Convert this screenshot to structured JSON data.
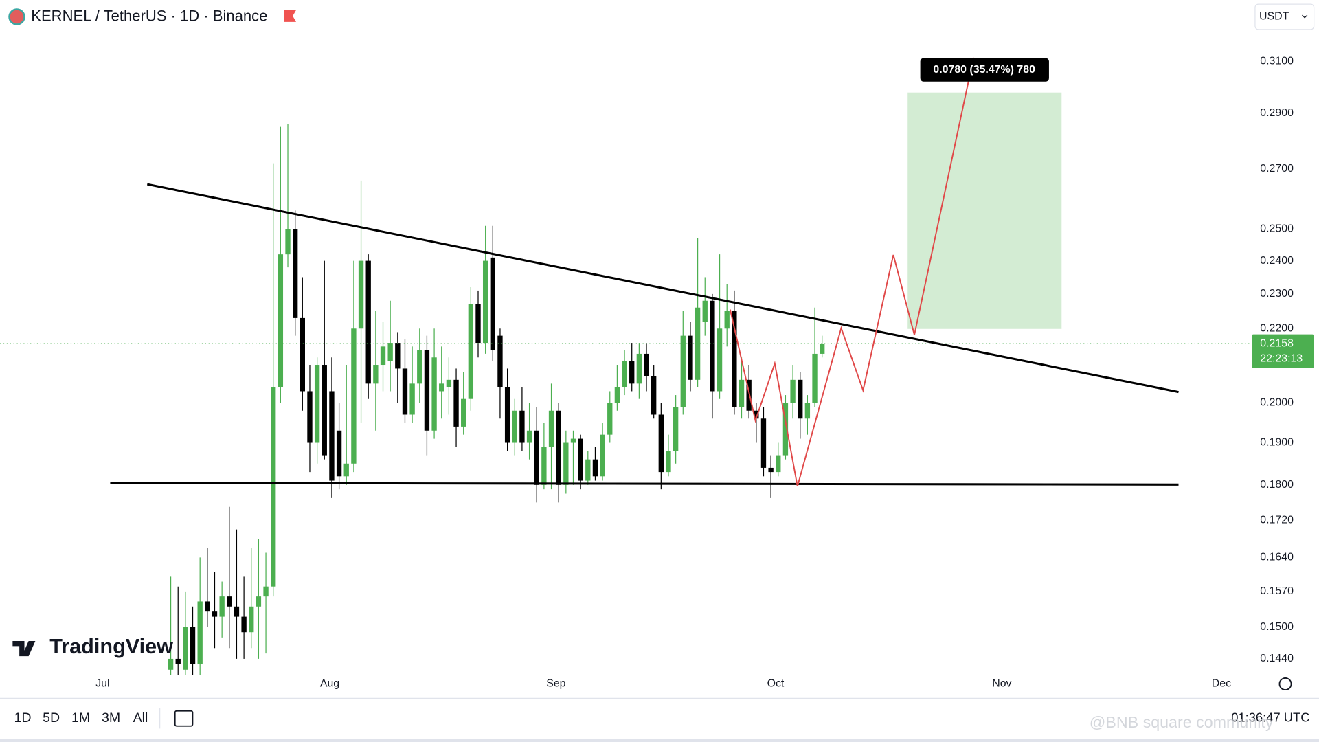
{
  "chart_data": {
    "type": "candlestick",
    "title": "KERNEL / TetherUS · 1D · Binance",
    "currency": "USDT",
    "log_scale": true,
    "grid": false,
    "up_color": "#4caf50",
    "down_color": "#000000",
    "ylim": [
      0.1414,
      0.3354
    ],
    "yticks": [
      {
        "value": 0.31,
        "label": "0.3100"
      },
      {
        "value": 0.29,
        "label": "0.2900"
      },
      {
        "value": 0.27,
        "label": "0.2700"
      },
      {
        "value": 0.25,
        "label": "0.2500"
      },
      {
        "value": 0.24,
        "label": "0.2400"
      },
      {
        "value": 0.23,
        "label": "0.2300"
      },
      {
        "value": 0.22,
        "label": "0.2200"
      },
      {
        "value": 0.2,
        "label": "0.2000"
      },
      {
        "value": 0.19,
        "label": "0.1900"
      },
      {
        "value": 0.18,
        "label": "0.1800"
      },
      {
        "value": 0.172,
        "label": "0.1720"
      },
      {
        "value": 0.164,
        "label": "0.1640"
      },
      {
        "value": 0.157,
        "label": "0.1570"
      },
      {
        "value": 0.15,
        "label": "0.1500"
      },
      {
        "value": 0.144,
        "label": "0.1440"
      }
    ],
    "x_labels": [
      "Jul",
      "Aug",
      "Sep",
      "Oct",
      "Nov",
      "Dec"
    ],
    "ohlc": [
      [
        0.142,
        0.16,
        0.141,
        0.144
      ],
      [
        0.144,
        0.158,
        0.141,
        0.143
      ],
      [
        0.142,
        0.157,
        0.141,
        0.15
      ],
      [
        0.15,
        0.154,
        0.141,
        0.143
      ],
      [
        0.143,
        0.164,
        0.141,
        0.155
      ],
      [
        0.155,
        0.166,
        0.15,
        0.153
      ],
      [
        0.153,
        0.161,
        0.146,
        0.152
      ],
      [
        0.152,
        0.159,
        0.148,
        0.156
      ],
      [
        0.156,
        0.175,
        0.146,
        0.154
      ],
      [
        0.154,
        0.17,
        0.144,
        0.152
      ],
      [
        0.152,
        0.16,
        0.144,
        0.149
      ],
      [
        0.149,
        0.166,
        0.146,
        0.154
      ],
      [
        0.154,
        0.168,
        0.144,
        0.156
      ],
      [
        0.156,
        0.165,
        0.145,
        0.158
      ],
      [
        0.158,
        0.272,
        0.156,
        0.204
      ],
      [
        0.204,
        0.285,
        0.2,
        0.242
      ],
      [
        0.242,
        0.286,
        0.238,
        0.25
      ],
      [
        0.25,
        0.256,
        0.218,
        0.223
      ],
      [
        0.223,
        0.235,
        0.198,
        0.203
      ],
      [
        0.203,
        0.21,
        0.183,
        0.19
      ],
      [
        0.19,
        0.212,
        0.185,
        0.21
      ],
      [
        0.21,
        0.24,
        0.186,
        0.187
      ],
      [
        0.203,
        0.212,
        0.177,
        0.181
      ],
      [
        0.193,
        0.2,
        0.179,
        0.182
      ],
      [
        0.182,
        0.21,
        0.18,
        0.185
      ],
      [
        0.185,
        0.24,
        0.183,
        0.22
      ],
      [
        0.22,
        0.266,
        0.195,
        0.24
      ],
      [
        0.24,
        0.242,
        0.201,
        0.205
      ],
      [
        0.205,
        0.225,
        0.193,
        0.21
      ],
      [
        0.21,
        0.222,
        0.203,
        0.215
      ],
      [
        0.211,
        0.228,
        0.203,
        0.216
      ],
      [
        0.216,
        0.219,
        0.2,
        0.209
      ],
      [
        0.209,
        0.217,
        0.195,
        0.197
      ],
      [
        0.197,
        0.215,
        0.195,
        0.205
      ],
      [
        0.205,
        0.22,
        0.2,
        0.214
      ],
      [
        0.214,
        0.218,
        0.187,
        0.193
      ],
      [
        0.193,
        0.22,
        0.191,
        0.212
      ],
      [
        0.203,
        0.215,
        0.196,
        0.205
      ],
      [
        0.204,
        0.212,
        0.197,
        0.206
      ],
      [
        0.206,
        0.209,
        0.189,
        0.194
      ],
      [
        0.194,
        0.208,
        0.192,
        0.201
      ],
      [
        0.201,
        0.232,
        0.198,
        0.227
      ],
      [
        0.227,
        0.231,
        0.212,
        0.216
      ],
      [
        0.216,
        0.251,
        0.213,
        0.24
      ],
      [
        0.241,
        0.251,
        0.211,
        0.214
      ],
      [
        0.218,
        0.22,
        0.196,
        0.204
      ],
      [
        0.204,
        0.209,
        0.188,
        0.19
      ],
      [
        0.19,
        0.201,
        0.187,
        0.198
      ],
      [
        0.198,
        0.204,
        0.188,
        0.19
      ],
      [
        0.19,
        0.2,
        0.186,
        0.193
      ],
      [
        0.193,
        0.199,
        0.176,
        0.18
      ],
      [
        0.18,
        0.195,
        0.179,
        0.189
      ],
      [
        0.189,
        0.205,
        0.179,
        0.198
      ],
      [
        0.198,
        0.2,
        0.176,
        0.18
      ],
      [
        0.18,
        0.193,
        0.178,
        0.19
      ],
      [
        0.19,
        0.193,
        0.18,
        0.191
      ],
      [
        0.191,
        0.192,
        0.179,
        0.181
      ],
      [
        0.181,
        0.188,
        0.18,
        0.186
      ],
      [
        0.186,
        0.189,
        0.181,
        0.182
      ],
      [
        0.182,
        0.195,
        0.181,
        0.192
      ],
      [
        0.192,
        0.203,
        0.19,
        0.2
      ],
      [
        0.2,
        0.21,
        0.198,
        0.204
      ],
      [
        0.204,
        0.214,
        0.202,
        0.211
      ],
      [
        0.211,
        0.216,
        0.203,
        0.205
      ],
      [
        0.205,
        0.216,
        0.201,
        0.213
      ],
      [
        0.213,
        0.216,
        0.203,
        0.207
      ],
      [
        0.207,
        0.21,
        0.196,
        0.197
      ],
      [
        0.197,
        0.2,
        0.179,
        0.183
      ],
      [
        0.183,
        0.192,
        0.182,
        0.188
      ],
      [
        0.188,
        0.202,
        0.185,
        0.199
      ],
      [
        0.199,
        0.225,
        0.197,
        0.218
      ],
      [
        0.218,
        0.222,
        0.203,
        0.206
      ],
      [
        0.206,
        0.247,
        0.204,
        0.226
      ],
      [
        0.222,
        0.235,
        0.218,
        0.228
      ],
      [
        0.228,
        0.23,
        0.196,
        0.203
      ],
      [
        0.203,
        0.242,
        0.201,
        0.22
      ],
      [
        0.22,
        0.233,
        0.215,
        0.225
      ],
      [
        0.225,
        0.231,
        0.197,
        0.199
      ],
      [
        0.199,
        0.212,
        0.196,
        0.206
      ],
      [
        0.206,
        0.21,
        0.196,
        0.198
      ],
      [
        0.198,
        0.2,
        0.19,
        0.196
      ],
      [
        0.196,
        0.199,
        0.182,
        0.184
      ],
      [
        0.184,
        0.187,
        0.177,
        0.183
      ],
      [
        0.183,
        0.19,
        0.182,
        0.187
      ],
      [
        0.187,
        0.202,
        0.186,
        0.2
      ],
      [
        0.2,
        0.21,
        0.196,
        0.206
      ],
      [
        0.206,
        0.208,
        0.191,
        0.196
      ],
      [
        0.196,
        0.202,
        0.192,
        0.2
      ],
      [
        0.2,
        0.226,
        0.199,
        0.213
      ],
      [
        0.213,
        0.218,
        0.212,
        0.2158
      ]
    ],
    "last_price": 0.2158,
    "countdown": "22:23:13",
    "measure_label": "0.0780 (35.47%) 780",
    "ranges": [
      "1D",
      "5D",
      "1M",
      "3M",
      "All"
    ],
    "clock": "01:36:47 UTC",
    "brand": "TradingView",
    "watermark": "@BNB square community"
  }
}
